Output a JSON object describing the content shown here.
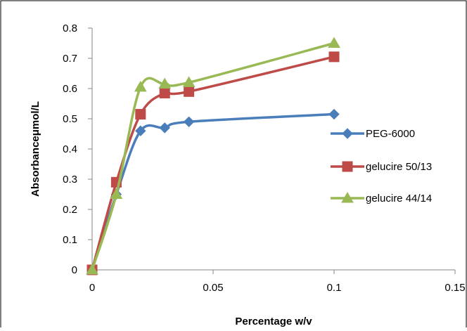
{
  "chart_data": {
    "type": "line",
    "title": "",
    "xlabel": "Percentage w/v",
    "ylabel": "Absorbanceμmol/L",
    "xlim": [
      0,
      0.15
    ],
    "ylim": [
      0,
      0.8
    ],
    "xticks": [
      "0",
      "0.05",
      "0.1",
      "0.15"
    ],
    "yticks": [
      "0",
      "0.1",
      "0.2",
      "0.3",
      "0.4",
      "0.5",
      "0.6",
      "0.7",
      "0.8"
    ],
    "grid": false,
    "legend_position": "right",
    "smoothed": true,
    "series": [
      {
        "name": "PEG-6000",
        "color": "#4a7ebb",
        "marker": "diamond",
        "x": [
          0,
          0.01,
          0.02,
          0.03,
          0.04,
          0.1
        ],
        "y": [
          0,
          0.25,
          0.46,
          0.47,
          0.49,
          0.515
        ]
      },
      {
        "name": "gelucire 50/13",
        "color": "#be4b48",
        "marker": "square",
        "x": [
          0,
          0.01,
          0.02,
          0.03,
          0.04,
          0.1
        ],
        "y": [
          0,
          0.29,
          0.515,
          0.585,
          0.59,
          0.705
        ]
      },
      {
        "name": "gelucire 44/14",
        "color": "#98b954",
        "marker": "triangle",
        "x": [
          0,
          0.01,
          0.02,
          0.03,
          0.04,
          0.1
        ],
        "y": [
          0,
          0.25,
          0.605,
          0.615,
          0.62,
          0.75
        ]
      }
    ]
  }
}
